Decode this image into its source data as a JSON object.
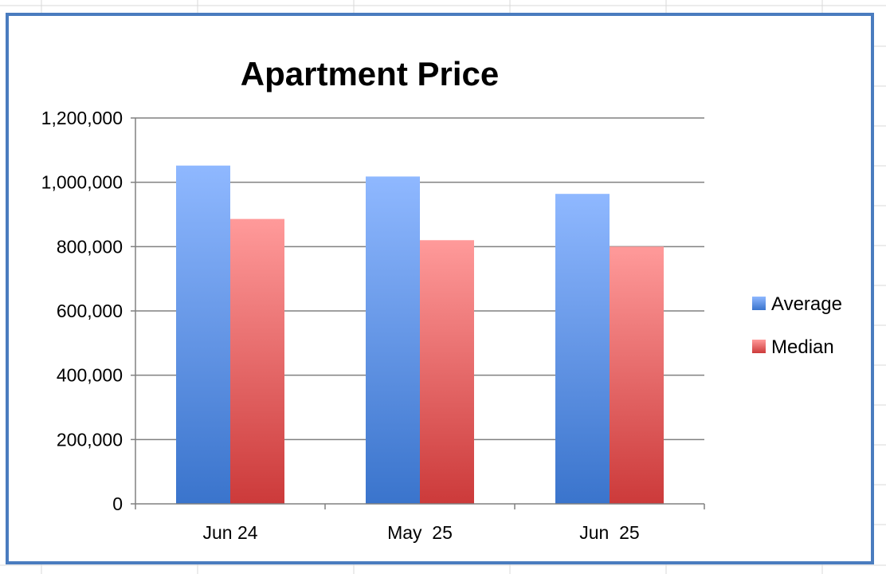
{
  "chart_data": {
    "type": "bar",
    "title": "Apartment Price",
    "categories": [
      "Jun 24",
      "May  25",
      "Jun  25"
    ],
    "series": [
      {
        "name": "Average",
        "values": [
          1052000,
          1018000,
          964000
        ],
        "color": "#5f95e6"
      },
      {
        "name": "Median",
        "values": [
          886000,
          820000,
          800000
        ],
        "color": "#ea6c6c"
      }
    ],
    "yticks": [
      "0",
      "200,000",
      "400,000",
      "600,000",
      "800,000",
      "1,000,000",
      "1,200,000"
    ],
    "ylim": [
      0,
      1200000
    ],
    "xlabel": "",
    "ylabel": "",
    "grid": true,
    "legend_position": "right"
  },
  "colors": {
    "frame_border": "#4a7cbf",
    "average_top": "#8fb8ff",
    "average_bottom": "#3a74cc",
    "median_top": "#ff9a9a",
    "median_bottom": "#cc3a3a",
    "gridline": "#808080"
  }
}
